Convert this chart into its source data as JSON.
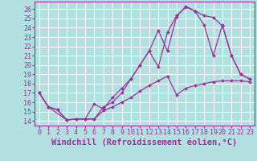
{
  "background_color": "#b2e0e0",
  "grid_color": "#ffffff",
  "line_color": "#993399",
  "xlabel": "Windchill (Refroidissement éolien,°C)",
  "ylim": [
    13.5,
    26.8
  ],
  "xlim": [
    -0.5,
    23.5
  ],
  "yticks": [
    14,
    15,
    16,
    17,
    18,
    19,
    20,
    21,
    22,
    23,
    24,
    25,
    26
  ],
  "xticks": [
    0,
    1,
    2,
    3,
    4,
    5,
    6,
    7,
    8,
    9,
    10,
    11,
    12,
    13,
    14,
    15,
    16,
    17,
    18,
    19,
    20,
    21,
    22,
    23
  ],
  "lines": [
    {
      "x": [
        0,
        1,
        3,
        4,
        5,
        6,
        7,
        8,
        9,
        10,
        11,
        12,
        13,
        14,
        15,
        16,
        17,
        18,
        19,
        20,
        21,
        22,
        23
      ],
      "y": [
        17,
        15.5,
        14.1,
        14.2,
        14.2,
        15.8,
        15.3,
        16.5,
        17.5,
        18.5,
        20.0,
        21.5,
        23.7,
        21.5,
        25.2,
        26.3,
        25.8,
        24.3,
        21.0,
        24.3,
        21.0,
        19.0,
        18.5
      ]
    },
    {
      "x": [
        0,
        1,
        2,
        3,
        4,
        5,
        6,
        7,
        8,
        9,
        10,
        11,
        12,
        13,
        14,
        15,
        16,
        17,
        18,
        19,
        20,
        21,
        22,
        23
      ],
      "y": [
        17,
        15.5,
        15.2,
        14.1,
        14.2,
        14.2,
        14.2,
        15.5,
        16.0,
        17.0,
        18.5,
        20.0,
        21.5,
        19.8,
        23.5,
        25.3,
        26.2,
        25.8,
        25.3,
        25.1,
        24.2,
        21.0,
        19.0,
        18.5
      ]
    },
    {
      "x": [
        0,
        1,
        2,
        3,
        4,
        5,
        6,
        7,
        8,
        9,
        10,
        11,
        12,
        13,
        14,
        15,
        16,
        17,
        18,
        19,
        20,
        21,
        22,
        23
      ],
      "y": [
        17,
        15.5,
        15.2,
        14.1,
        14.2,
        14.2,
        14.2,
        15.1,
        15.5,
        16.0,
        16.5,
        17.2,
        17.8,
        18.3,
        18.8,
        16.8,
        17.5,
        17.8,
        18.0,
        18.2,
        18.3,
        18.3,
        18.3,
        18.2
      ]
    }
  ],
  "xlabel_fontsize": 7.5,
  "tick_fontsize": 6.0,
  "marker": "D",
  "markersize": 2.0,
  "linewidth": 0.9
}
